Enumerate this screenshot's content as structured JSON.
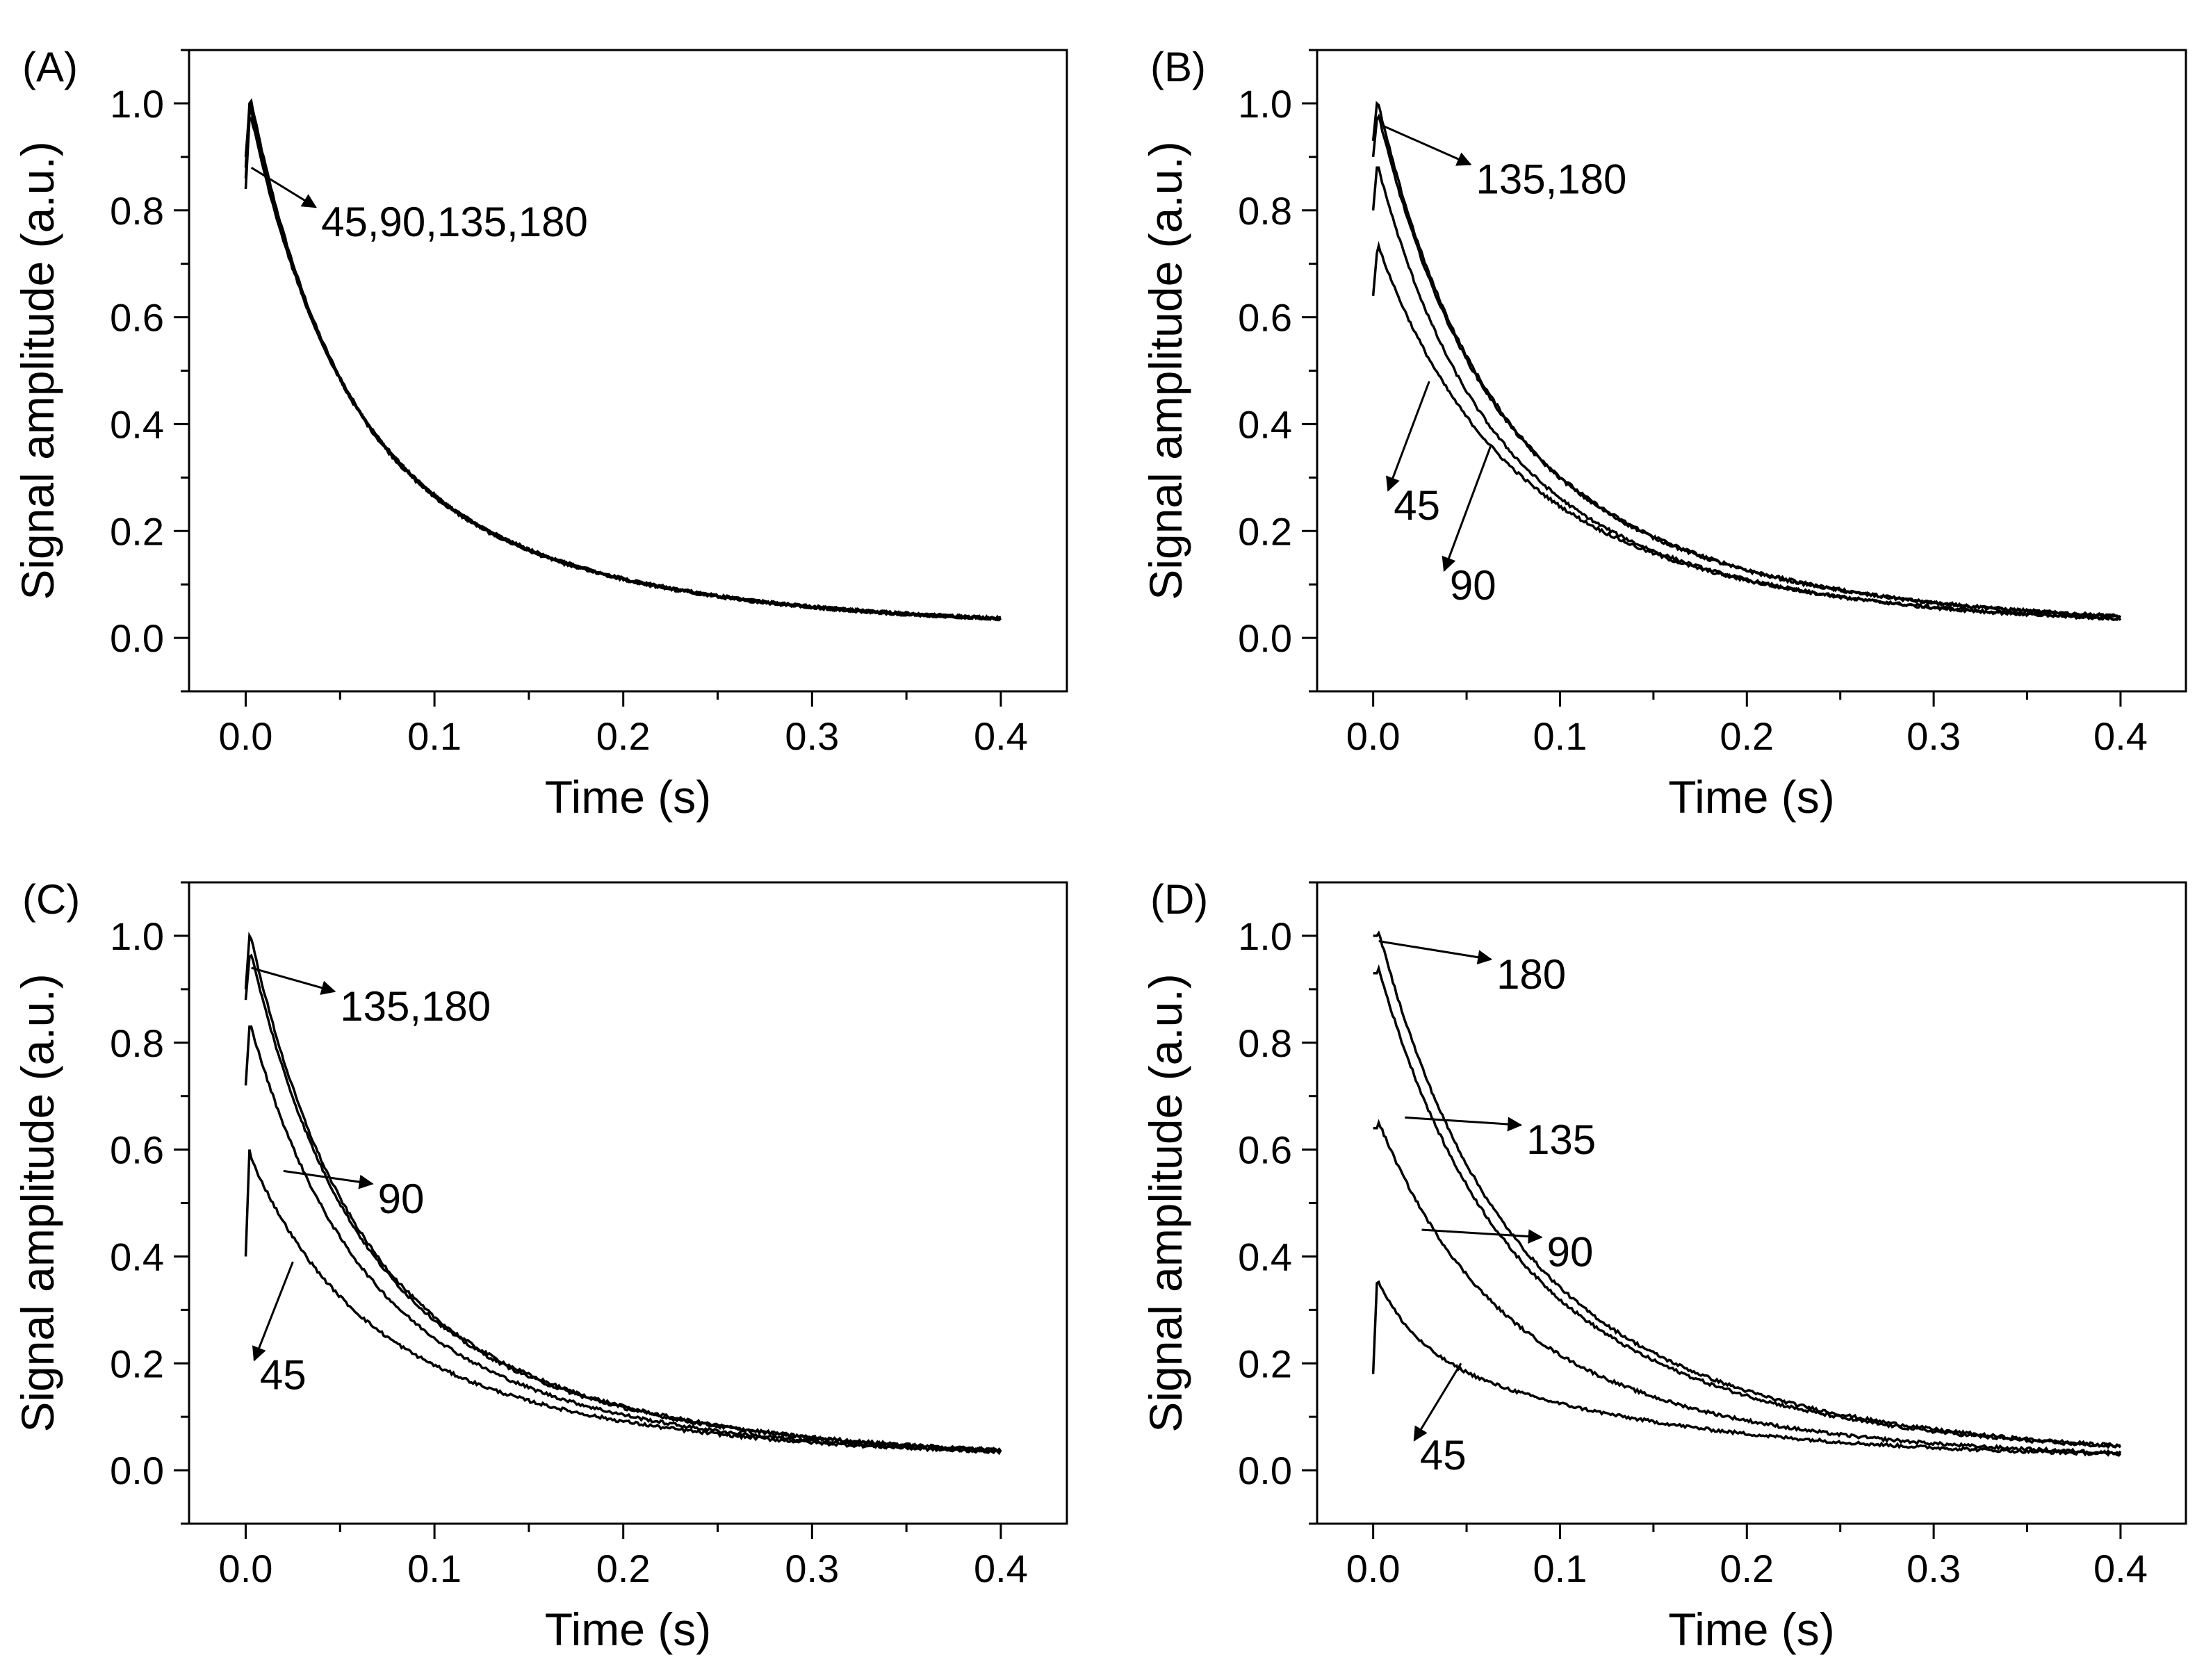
{
  "chart_data": [
    {
      "type": "line",
      "panel": "(A)",
      "xlabel": "Time (s)",
      "ylabel": "Signal amplitude (a.u.)",
      "xlim": [
        -0.03,
        0.435
      ],
      "ylim": [
        -0.1,
        1.1
      ],
      "xticks": [
        0.0,
        0.1,
        0.2,
        0.3,
        0.4
      ],
      "xtick_labels": [
        "0.0",
        "0.1",
        "0.2",
        "0.3",
        "0.4"
      ],
      "yticks": [
        0.0,
        0.2,
        0.4,
        0.6,
        0.8,
        1.0
      ],
      "ytick_labels": [
        "0.0",
        "0.2",
        "0.4",
        "0.6",
        "0.8",
        "1.0"
      ],
      "series": [
        {
          "name": "45",
          "start": 0.88,
          "peak": 1.0,
          "amp": 1.0,
          "fast_tau": 0.04,
          "slow_tau": 0.12,
          "fast_frac": 0.55
        },
        {
          "name": "90",
          "start": 0.9,
          "peak": 0.99,
          "amp": 0.99,
          "fast_tau": 0.04,
          "slow_tau": 0.12,
          "fast_frac": 0.55
        },
        {
          "name": "135",
          "start": 0.86,
          "peak": 0.98,
          "amp": 0.98,
          "fast_tau": 0.041,
          "slow_tau": 0.121,
          "fast_frac": 0.55
        },
        {
          "name": "180",
          "start": 0.84,
          "peak": 0.97,
          "amp": 0.97,
          "fast_tau": 0.042,
          "slow_tau": 0.122,
          "fast_frac": 0.55
        }
      ],
      "annotations": [
        {
          "text": "45,90,135,180",
          "pointer": [
            0.003,
            0.88
          ],
          "label": [
            0.04,
            0.78
          ]
        }
      ]
    },
    {
      "type": "line",
      "panel": "(B)",
      "xlabel": "Time (s)",
      "ylabel": "Signal amplitude (a.u.)",
      "xlim": [
        -0.03,
        0.435
      ],
      "ylim": [
        -0.1,
        1.1
      ],
      "xticks": [
        0.0,
        0.1,
        0.2,
        0.3,
        0.4
      ],
      "xtick_labels": [
        "0.0",
        "0.1",
        "0.2",
        "0.3",
        "0.4"
      ],
      "yticks": [
        0.0,
        0.2,
        0.4,
        0.6,
        0.8,
        1.0
      ],
      "ytick_labels": [
        "0.0",
        "0.2",
        "0.4",
        "0.6",
        "0.8",
        "1.0"
      ],
      "series": [
        {
          "name": "180",
          "start": 0.93,
          "peak": 1.0,
          "amp": 0.99,
          "fast_tau": 0.045,
          "slow_tau": 0.125,
          "fast_frac": 0.5
        },
        {
          "name": "135",
          "start": 0.9,
          "peak": 0.97,
          "amp": 0.97,
          "fast_tau": 0.046,
          "slow_tau": 0.125,
          "fast_frac": 0.5
        },
        {
          "name": "90",
          "start": 0.8,
          "peak": 0.88,
          "amp": 0.87,
          "fast_tau": 0.045,
          "slow_tau": 0.12,
          "fast_frac": 0.5
        },
        {
          "name": "45",
          "start": 0.64,
          "peak": 0.72,
          "amp": 0.72,
          "fast_tau": 0.05,
          "slow_tau": 0.125,
          "fast_frac": 0.45
        }
      ],
      "annotations": [
        {
          "text": "135,180",
          "pointer": [
            0.004,
            0.96
          ],
          "label": [
            0.055,
            0.86
          ]
        },
        {
          "text": "45",
          "pointer": [
            0.03,
            0.48
          ],
          "label": [
            0.011,
            0.25
          ]
        },
        {
          "text": "90",
          "pointer": [
            0.063,
            0.36
          ],
          "label": [
            0.041,
            0.1
          ]
        }
      ]
    },
    {
      "type": "line",
      "panel": "(C)",
      "xlabel": "Time (s)",
      "ylabel": "Signal amplitude (a.u.)",
      "xlim": [
        -0.03,
        0.435
      ],
      "ylim": [
        -0.1,
        1.1
      ],
      "xticks": [
        0.0,
        0.1,
        0.2,
        0.3,
        0.4
      ],
      "xtick_labels": [
        "0.0",
        "0.1",
        "0.2",
        "0.3",
        "0.4"
      ],
      "yticks": [
        0.0,
        0.2,
        0.4,
        0.6,
        0.8,
        1.0
      ],
      "ytick_labels": [
        "0.0",
        "0.2",
        "0.4",
        "0.6",
        "0.8",
        "1.0"
      ],
      "series": [
        {
          "name": "180",
          "start": 0.9,
          "peak": 1.0,
          "amp": 0.99,
          "fast_tau": 0.042,
          "slow_tau": 0.12,
          "fast_frac": 0.5
        },
        {
          "name": "135",
          "start": 0.88,
          "peak": 0.96,
          "amp": 0.96,
          "fast_tau": 0.043,
          "slow_tau": 0.12,
          "fast_frac": 0.5
        },
        {
          "name": "90",
          "start": 0.72,
          "peak": 0.83,
          "amp": 0.82,
          "fast_tau": 0.045,
          "slow_tau": 0.12,
          "fast_frac": 0.5
        },
        {
          "name": "45",
          "start": 0.4,
          "peak": 0.6,
          "amp": 0.57,
          "fast_tau": 0.045,
          "slow_tau": 0.13,
          "fast_frac": 0.45
        }
      ],
      "annotations": [
        {
          "text": "135,180",
          "pointer": [
            0.003,
            0.94
          ],
          "label": [
            0.05,
            0.87
          ]
        },
        {
          "text": "90",
          "pointer": [
            0.02,
            0.56
          ],
          "label": [
            0.07,
            0.51
          ]
        },
        {
          "text": "45",
          "pointer": [
            0.025,
            0.39
          ],
          "label": [
            0.0075,
            0.18
          ]
        }
      ]
    },
    {
      "type": "line",
      "panel": "(D)",
      "xlabel": "Time (s)",
      "ylabel": "Signal amplitude (a.u.)",
      "xlim": [
        -0.03,
        0.435
      ],
      "ylim": [
        -0.1,
        1.1
      ],
      "xticks": [
        0.0,
        0.1,
        0.2,
        0.3,
        0.4
      ],
      "xtick_labels": [
        "0.0",
        "0.1",
        "0.2",
        "0.3",
        "0.4"
      ],
      "yticks": [
        0.0,
        0.2,
        0.4,
        0.6,
        0.8,
        1.0
      ],
      "ytick_labels": [
        "0.0",
        "0.2",
        "0.4",
        "0.6",
        "0.8",
        "1.0"
      ],
      "series": [
        {
          "name": "180",
          "start": 1.0,
          "peak": 1.0,
          "amp": 1.0,
          "fast_tau": 0.05,
          "slow_tau": 0.13,
          "fast_frac": 0.45
        },
        {
          "name": "135",
          "start": 0.93,
          "peak": 0.93,
          "amp": 0.93,
          "fast_tau": 0.05,
          "slow_tau": 0.13,
          "fast_frac": 0.45
        },
        {
          "name": "90",
          "start": 0.64,
          "peak": 0.64,
          "amp": 0.64,
          "fast_tau": 0.05,
          "slow_tau": 0.12,
          "fast_frac": 0.45
        },
        {
          "name": "45",
          "start": 0.18,
          "peak": 0.35,
          "amp": 0.34,
          "fast_tau": 0.02,
          "slow_tau": 0.13,
          "fast_frac": 0.35
        }
      ],
      "annotations": [
        {
          "text": "180",
          "pointer": [
            0.003,
            0.99
          ],
          "label": [
            0.066,
            0.93
          ]
        },
        {
          "text": "135",
          "pointer": [
            0.017,
            0.66
          ],
          "label": [
            0.082,
            0.62
          ]
        },
        {
          "text": "90",
          "pointer": [
            0.026,
            0.45
          ],
          "label": [
            0.093,
            0.41
          ]
        },
        {
          "text": "45",
          "pointer": [
            0.047,
            0.2
          ],
          "label": [
            0.025,
            0.03
          ]
        }
      ]
    }
  ]
}
